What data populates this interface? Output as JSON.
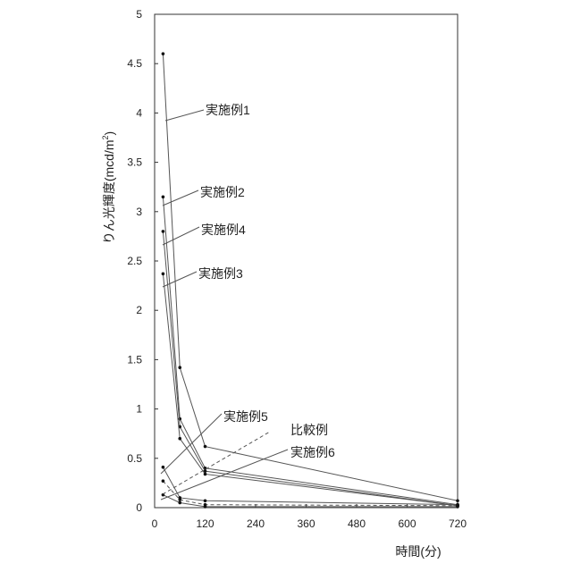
{
  "chart_data": {
    "type": "line",
    "title": "",
    "xlabel": "時間(分)",
    "ylabel_main": "りん光輝度(mcd/m",
    "ylabel_sup": "2",
    "ylabel_end": ")",
    "x_ticks": [
      0,
      120,
      240,
      360,
      480,
      600,
      720
    ],
    "y_ticks": [
      0,
      0.5,
      1,
      1.5,
      2,
      2.5,
      3,
      3.5,
      4,
      4.5,
      5
    ],
    "y_tick_labels": [
      "0",
      "0.5",
      "1",
      "1.5",
      "2",
      "2.5",
      "3",
      "3.5",
      "4",
      "4.5",
      "5"
    ],
    "xlim": [
      0,
      720
    ],
    "ylim": [
      0,
      5
    ],
    "grid": false,
    "series": [
      {
        "name": "実施例1",
        "dashed": false,
        "x": [
          20,
          60,
          120,
          720
        ],
        "y": [
          4.6,
          1.42,
          0.62,
          0.07
        ]
      },
      {
        "name": "実施例2",
        "dashed": false,
        "x": [
          20,
          60,
          120,
          720
        ],
        "y": [
          3.15,
          0.9,
          0.4,
          0.03
        ]
      },
      {
        "name": "実施例4",
        "dashed": false,
        "x": [
          20,
          60,
          120,
          720
        ],
        "y": [
          2.8,
          0.82,
          0.37,
          0.02
        ]
      },
      {
        "name": "実施例3",
        "dashed": false,
        "x": [
          20,
          60,
          120,
          720
        ],
        "y": [
          2.37,
          0.7,
          0.34,
          0.02
        ]
      },
      {
        "name": "実施例5",
        "dashed": false,
        "x": [
          20,
          60,
          120,
          720
        ],
        "y": [
          0.41,
          0.1,
          0.07,
          0.03
        ]
      },
      {
        "name": "比較例",
        "dashed": true,
        "x": [
          20,
          60,
          120,
          720
        ],
        "y": [
          0.27,
          0.08,
          0.03,
          0.02
        ]
      },
      {
        "name": "実施例6",
        "dashed": false,
        "x": [
          20,
          60,
          120,
          720
        ],
        "y": [
          0.13,
          0.05,
          0.01,
          0.01
        ]
      }
    ],
    "colors": {
      "line": "#555555",
      "marker": "#111111",
      "axis": "#333333"
    }
  }
}
